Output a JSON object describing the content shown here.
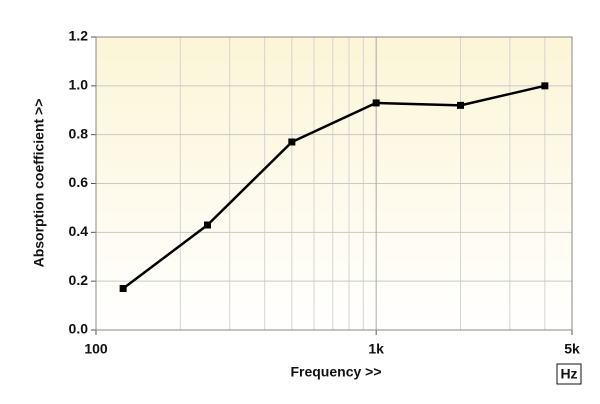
{
  "chart_data": {
    "type": "line",
    "xlabel": "Frequency >>",
    "ylabel": "Absorption coefficient >>",
    "unit": "Hz",
    "x": [
      125,
      250,
      500,
      1000,
      2000,
      4000
    ],
    "series": [
      {
        "name": "Absorption coefficient",
        "color": "#000000",
        "values": [
          0.17,
          0.43,
          0.77,
          0.93,
          0.92,
          1.0
        ]
      }
    ],
    "xlim": [
      100,
      5000
    ],
    "xscale": "log",
    "xticks": [
      100,
      {
        "value": 1000,
        "label": "1k"
      },
      {
        "value": 5000,
        "label": "5k"
      }
    ],
    "xminorticks": [
      200,
      300,
      400,
      500,
      600,
      700,
      800,
      900,
      2000,
      3000,
      4000
    ],
    "ylim": [
      0,
      1.2
    ],
    "yticks": [
      {
        "value": 0,
        "label": "0.0"
      },
      0.2,
      0.4,
      0.6,
      0.8,
      {
        "value": 1,
        "label": "1.0"
      },
      1.2
    ],
    "grid": true
  }
}
